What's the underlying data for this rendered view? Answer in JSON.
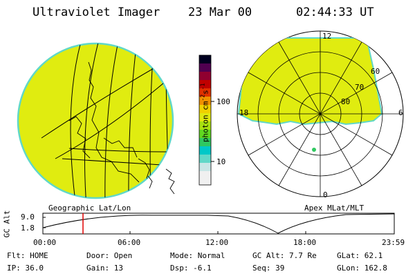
{
  "header": {
    "title": "Ultraviolet Imager",
    "date": "23 Mar 00",
    "time": "02:44:33 UT"
  },
  "colorbar": {
    "unit_label": "photon cm",
    "unit_exp1": "-2",
    "unit_s": "s",
    "unit_exp2": "-1",
    "tick_100": "100",
    "tick_10": "10",
    "colors": [
      "#f0f0f0",
      "#c8e6e6",
      "#60d8c8",
      "#00c8c8",
      "#30c860",
      "#60d820",
      "#a8e010",
      "#e0e810",
      "#f0d000",
      "#f09000",
      "#e03000",
      "#c00000",
      "#900030",
      "#500050",
      "#000020"
    ]
  },
  "left_globe": {
    "label": "Geographic Lat/Lon",
    "fill_color": "#e0ec10",
    "rim_color": "#60d8c8"
  },
  "polar_plot": {
    "label": "Apex MLat/MLT",
    "mlt_12": "12",
    "mlt_18": "18",
    "mlt_6": "6",
    "mlt_0": "0",
    "lat_60": "60",
    "lat_70": "70",
    "lat_80": "80"
  },
  "altitude_plot": {
    "ylabel": "GC Alt",
    "ytick_top": "9.0",
    "ytick_bottom": "1.8",
    "xticks": [
      "00:00",
      "06:00",
      "12:00",
      "18:00",
      "23:59"
    ],
    "marker_color": "#e00000"
  },
  "status": {
    "flt": "Flt: HOME",
    "door": "Door: Open",
    "mode": "Mode: Normal",
    "gc_alt": "GC Alt: 7.7 Re",
    "glat": "GLat:  62.1",
    "ip": "IP: 36.0",
    "gain": "Gain: 13",
    "dsp": "Dsp:   -6.1",
    "seq": "Seq: 39",
    "glon": "GLon: 162.8"
  }
}
